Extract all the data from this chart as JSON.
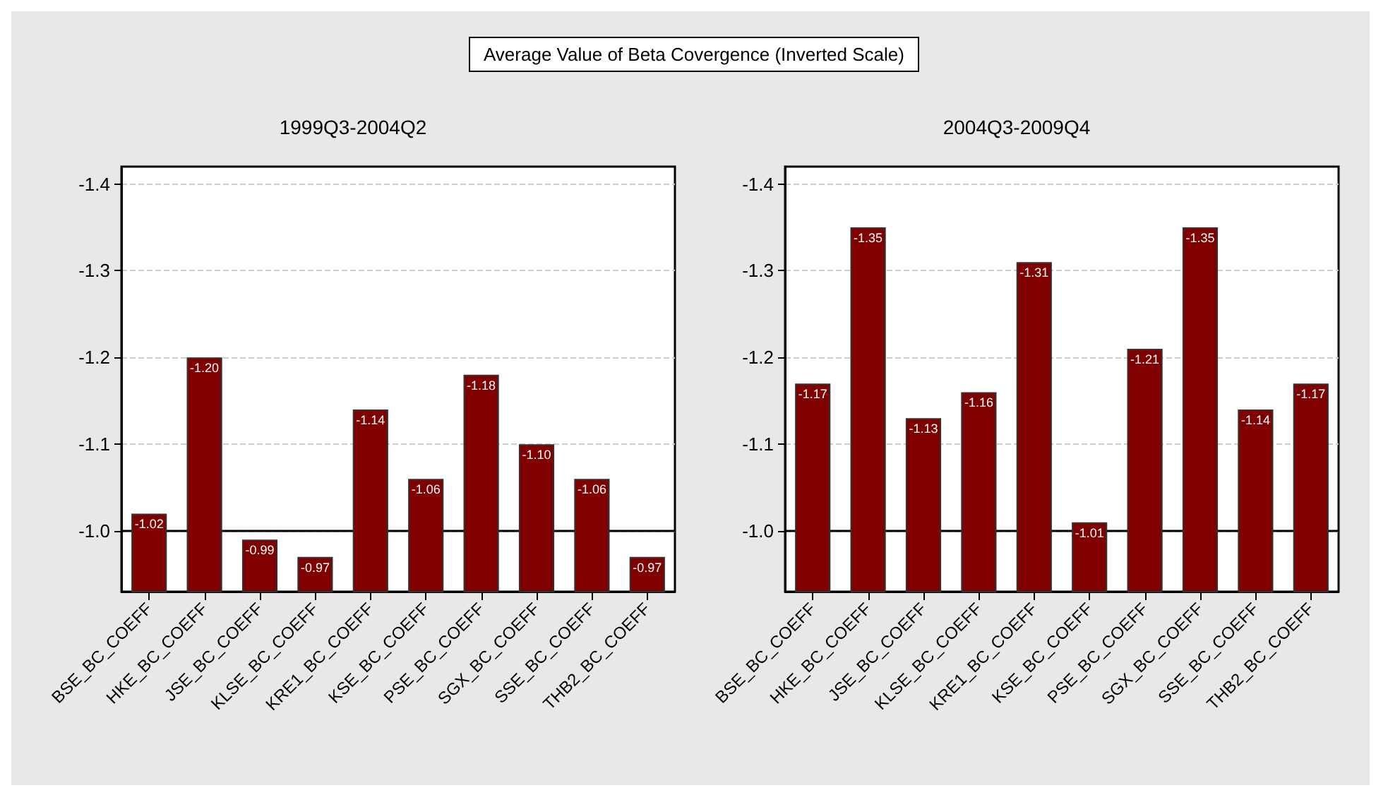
{
  "chart_data": [
    {
      "type": "bar",
      "title": "1999Q3-2004Q2",
      "annotations": [
        "Average Value of Beta Covergence (Inverted Scale)"
      ],
      "categories": [
        "BSE_BC_COEFF",
        "HKE_BC_COEFF",
        "JSE_BC_COEFF",
        "KLSE_BC_COEFF",
        "KRE1_BC_COEFF",
        "KSE_BC_COEFF",
        "PSE_BC_COEFF",
        "SGX_BC_COEFF",
        "SSE_BC_COEFF",
        "THB2_BC_COEFF"
      ],
      "values": [
        -1.02,
        -1.2,
        -0.99,
        -0.97,
        -1.14,
        -1.06,
        -1.18,
        -1.1,
        -1.06,
        -0.97
      ],
      "value_labels": [
        "-1.02",
        "-1.20",
        "-0.99",
        "-0.97",
        "-1.14",
        "-1.06",
        "-1.18",
        "-1.10",
        "-1.06",
        "-0.97"
      ],
      "color": "#800000",
      "ylim": [
        -0.93,
        -1.42
      ],
      "yticks": [
        {
          "value": -1.0,
          "label": "-1.0"
        },
        -1.1,
        -1.2,
        -1.3,
        -1.4
      ],
      "ref_lines": [
        {
          "axis": "y",
          "value": -1.0,
          "color": "#000000"
        }
      ],
      "grid": "y"
    },
    {
      "type": "bar",
      "title": "2004Q3-2009Q4",
      "categories": [
        "BSE_BC_COEFF",
        "HKE_BC_COEFF",
        "JSE_BC_COEFF",
        "KLSE_BC_COEFF",
        "KRE1_BC_COEFF",
        "KSE_BC_COEFF",
        "PSE_BC_COEFF",
        "SGX_BC_COEFF",
        "SSE_BC_COEFF",
        "THB2_BC_COEFF"
      ],
      "values": [
        -1.17,
        -1.35,
        -1.13,
        -1.16,
        -1.31,
        -1.01,
        -1.21,
        -1.35,
        -1.14,
        -1.17
      ],
      "value_labels": [
        "-1.17",
        "-1.35",
        "-1.13",
        "-1.16",
        "-1.31",
        "-1.01",
        "-1.21",
        "-1.35",
        "-1.14",
        "-1.17"
      ],
      "color": "#800000",
      "ylim": [
        -0.93,
        -1.42
      ],
      "yticks": [
        {
          "value": -1.0,
          "label": "-1.0"
        },
        -1.1,
        -1.2,
        -1.3,
        -1.4
      ],
      "ref_lines": [
        {
          "axis": "y",
          "value": -1.0,
          "color": "#000000"
        }
      ],
      "grid": "y"
    }
  ]
}
